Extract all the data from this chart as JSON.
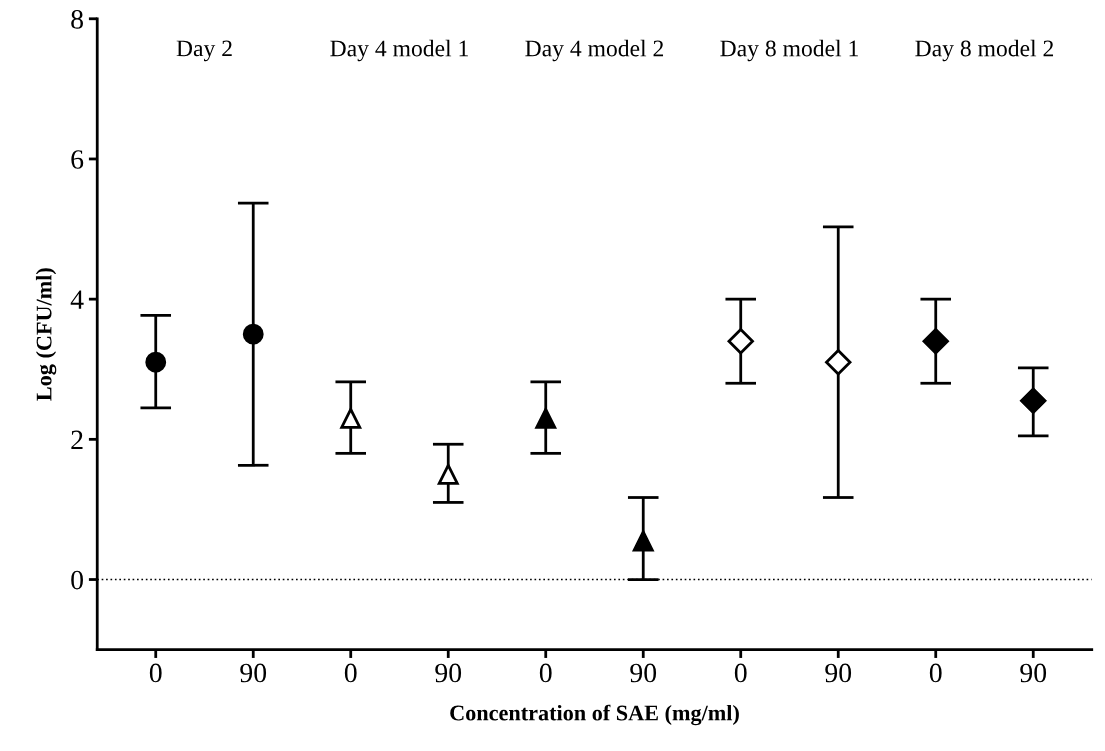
{
  "chart_data": {
    "type": "scatter",
    "xlabel": "Concentration of SAE (mg/ml)",
    "ylabel": "Log (CFU/ml)",
    "annotations": [
      "Day 2",
      "Day 4 model 1",
      "Day 4 model 2",
      "Day 8 model 1",
      "Day 8 model 2"
    ],
    "categories": [
      "0",
      "90",
      "0",
      "90",
      "0",
      "90",
      "0",
      "90",
      "0",
      "90"
    ],
    "ylim": [
      -1,
      8
    ],
    "yticks": [
      0,
      2,
      4,
      6,
      8
    ],
    "grid": false,
    "legend": false,
    "line_style": "none",
    "ref_lines": [
      {
        "axis": "y",
        "value": 0,
        "line_style": "dotted",
        "color": "#000000"
      }
    ],
    "series": [
      {
        "color": "#000000",
        "marker": "circle",
        "values": [
          3.1,
          3.5,
          null,
          null,
          null,
          null,
          null,
          null,
          null,
          null
        ],
        "errors": [
          [
            2.45,
            3.77
          ],
          [
            1.63,
            5.37
          ],
          null,
          null,
          null,
          null,
          null,
          null,
          null,
          null
        ]
      },
      {
        "color": "#ffffff",
        "marker": "triangle",
        "values": [
          null,
          null,
          2.3,
          1.5,
          null,
          null,
          null,
          null,
          null,
          null
        ],
        "errors": [
          null,
          null,
          [
            1.8,
            2.82
          ],
          [
            1.1,
            1.93
          ],
          null,
          null,
          null,
          null,
          null,
          null
        ]
      },
      {
        "color": "#000000",
        "marker": "triangle",
        "values": [
          null,
          null,
          null,
          null,
          2.3,
          0.55,
          null,
          null,
          null,
          null
        ],
        "errors": [
          null,
          null,
          null,
          null,
          [
            1.8,
            2.82
          ],
          [
            0,
            1.17
          ],
          null,
          null,
          null,
          null
        ]
      },
      {
        "color": "#ffffff",
        "marker": "diamond",
        "values": [
          null,
          null,
          null,
          null,
          null,
          null,
          3.4,
          3.1,
          null,
          null
        ],
        "errors": [
          null,
          null,
          null,
          null,
          null,
          null,
          [
            2.8,
            4.0
          ],
          [
            1.17,
            5.03
          ],
          null,
          null
        ]
      },
      {
        "color": "#000000",
        "marker": "diamond",
        "values": [
          null,
          null,
          null,
          null,
          null,
          null,
          null,
          null,
          3.4,
          2.55
        ],
        "errors": [
          null,
          null,
          null,
          null,
          null,
          null,
          null,
          null,
          [
            2.8,
            4.0
          ],
          [
            2.05,
            3.02
          ]
        ]
      }
    ]
  }
}
